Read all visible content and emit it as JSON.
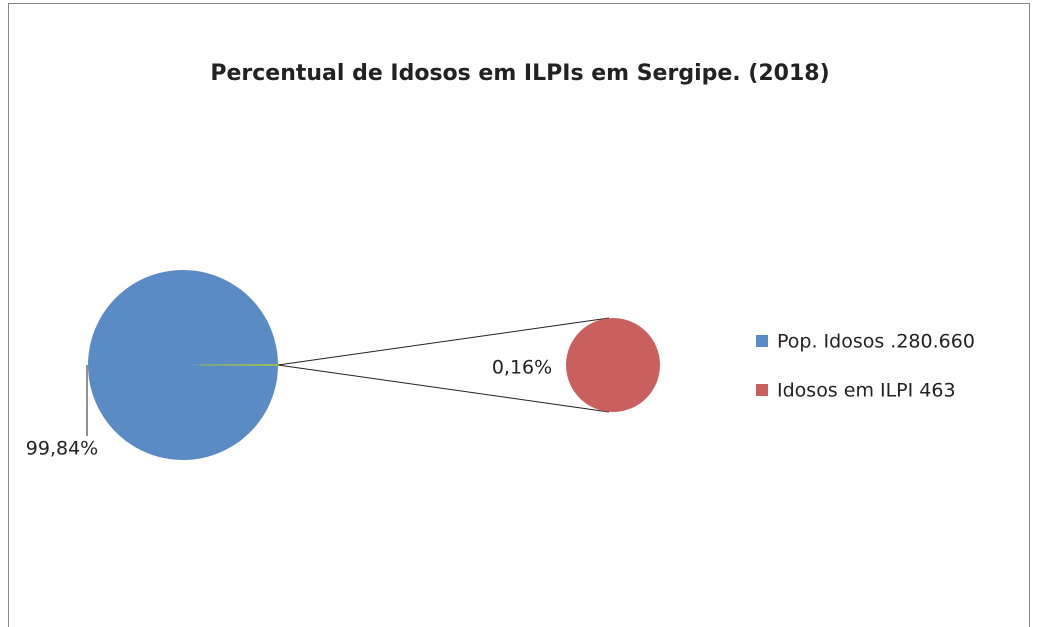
{
  "chart_data": {
    "type": "pie-of-pie",
    "title": "Percentual de Idosos em ILPIs em Sergipe. (2018)",
    "categories": [
      "Pop. Idosos .280.660",
      "Idosos em ILPI 463"
    ],
    "values": [
      99.84,
      0.16
    ],
    "value_labels": [
      "99,84%",
      "0,16%"
    ],
    "colors": [
      "#5b8bc5",
      "#c9605d"
    ],
    "legend": "right"
  }
}
